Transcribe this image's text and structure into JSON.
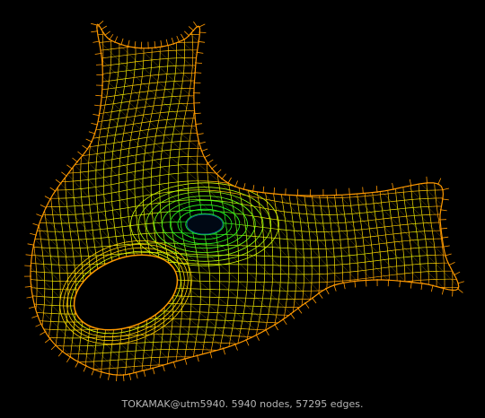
{
  "caption": "TOKAMAK@utm5940. 5940 nodes, 57295 edges.",
  "colors": {
    "background": "#000000",
    "caption_text": "#b4b4b4",
    "edge_outer": "#ff9900",
    "edge_mid": "#ffd000",
    "edge_warm": "#e8ff00",
    "edge_inner": "#22ff22",
    "edge_deep": "#0a6a8a",
    "hub_fill": "#000814"
  }
}
